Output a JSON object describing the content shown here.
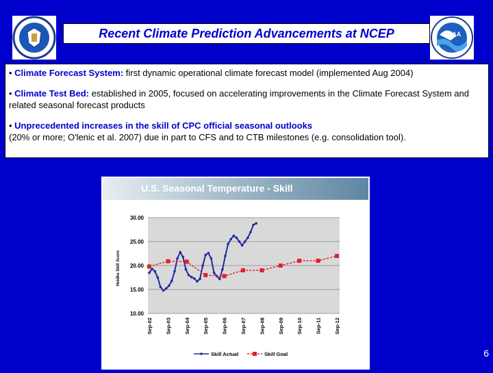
{
  "slide": {
    "title": "Recent Climate Prediction Advancements at NCEP",
    "page_number": "6",
    "colors": {
      "background": "#0000cc",
      "accent": "#0000cc",
      "actual": "#1f2aa0",
      "goal": "#e0202a"
    }
  },
  "bullets": [
    {
      "label": "Climate Forecast System:",
      "text": " first dynamic operational climate forecast model (implemented Aug 2004)"
    },
    {
      "label": "Climate Test Bed:",
      "text": " established in 2005, focused on accelerating improvements in the Climate Forecast System and related seasonal forecast products"
    },
    {
      "label": "Unprecedented increases in the skill of CPC official seasonal outlooks",
      "text": "(20% or more; O'lenic et al. 2007) due in part to CFS and to CTB milestones (e.g. consolidation tool)."
    }
  ],
  "logos": {
    "left": "doc-seal-icon",
    "right": "noaa-logo-icon"
  },
  "chart_data": {
    "type": "line",
    "title": "U.S. Seasonal Temperature - Skill",
    "ylabel": "Heidke Skill Score",
    "xlabel": "",
    "ylim": [
      10,
      30
    ],
    "yticks": [
      "10.00",
      "15.00",
      "20.00",
      "25.00",
      "30.00"
    ],
    "x_labels": [
      "Sep-02",
      "Sep-03",
      "Sep-04",
      "Sep-05",
      "Sep-06",
      "Sep-07",
      "Sep-08",
      "Sep-09",
      "Sep-10",
      "Sep-11",
      "Sep-12"
    ],
    "legend": [
      "Skill Actual",
      "Skill Goal"
    ],
    "legend_position": "bottom",
    "series": [
      {
        "name": "Skill Actual",
        "color": "#1f2aa0",
        "points": [
          [
            0,
            18.5
          ],
          [
            0.15,
            19.3
          ],
          [
            0.3,
            18.8
          ],
          [
            0.45,
            17.5
          ],
          [
            0.6,
            15.5
          ],
          [
            0.75,
            14.8
          ],
          [
            0.9,
            15.2
          ],
          [
            1.05,
            15.8
          ],
          [
            1.2,
            16.8
          ],
          [
            1.35,
            18.8
          ],
          [
            1.5,
            21.5
          ],
          [
            1.65,
            22.8
          ],
          [
            1.8,
            21.8
          ],
          [
            1.95,
            19.2
          ],
          [
            2.1,
            18.0
          ],
          [
            2.25,
            17.6
          ],
          [
            2.4,
            17.3
          ],
          [
            2.55,
            16.7
          ],
          [
            2.7,
            17.2
          ],
          [
            2.85,
            20.0
          ],
          [
            3.0,
            22.2
          ],
          [
            3.15,
            22.6
          ],
          [
            3.3,
            21.5
          ],
          [
            3.45,
            18.5
          ],
          [
            3.6,
            17.8
          ],
          [
            3.75,
            17.2
          ],
          [
            3.9,
            19.2
          ],
          [
            4.05,
            22.0
          ],
          [
            4.2,
            24.5
          ],
          [
            4.35,
            25.5
          ],
          [
            4.5,
            26.2
          ],
          [
            4.65,
            25.8
          ],
          [
            4.8,
            25.0
          ],
          [
            4.95,
            24.2
          ],
          [
            5.1,
            25.0
          ],
          [
            5.25,
            25.8
          ],
          [
            5.4,
            27.0
          ],
          [
            5.55,
            28.5
          ],
          [
            5.7,
            28.8
          ]
        ]
      },
      {
        "name": "Skill Goal",
        "color": "#e0202a",
        "points": [
          [
            0,
            19.8
          ],
          [
            1,
            20.9
          ],
          [
            2,
            20.8
          ],
          [
            3,
            18.0
          ],
          [
            4,
            17.8
          ],
          [
            5,
            19.0
          ],
          [
            6,
            19.0
          ],
          [
            7,
            20.0
          ],
          [
            8,
            21.0
          ],
          [
            9,
            21.0
          ],
          [
            10,
            22.0
          ]
        ]
      }
    ]
  }
}
